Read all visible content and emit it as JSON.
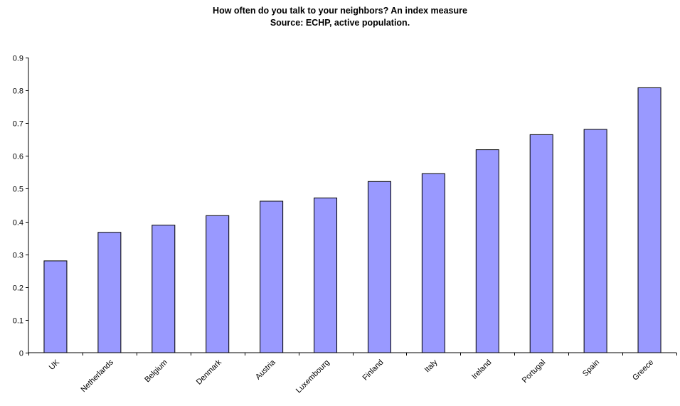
{
  "chart_data": {
    "type": "bar",
    "title": "How often do you talk to your neighbors? An index measure",
    "subtitle": "Source: ECHP, active population.",
    "xlabel": "",
    "ylabel": "",
    "ylim": [
      0,
      0.9
    ],
    "yticks": [
      "0",
      "0.1",
      "0.2",
      "0.3",
      "0.4",
      "0.5",
      "0.6",
      "0.7",
      "0.8",
      "0.9"
    ],
    "categories": [
      "UK",
      "Netherlands",
      "Belgium",
      "Denmark",
      "Austria",
      "Luxembourg",
      "Finland",
      "Italy",
      "Ireland",
      "Portugal",
      "Spain",
      "Greece"
    ],
    "values": [
      0.28,
      0.367,
      0.389,
      0.418,
      0.462,
      0.472,
      0.522,
      0.546,
      0.619,
      0.665,
      0.681,
      0.808
    ],
    "bar_color": "#9999ff",
    "bar_border_color": "#000000",
    "grid": false,
    "legend": "none"
  }
}
